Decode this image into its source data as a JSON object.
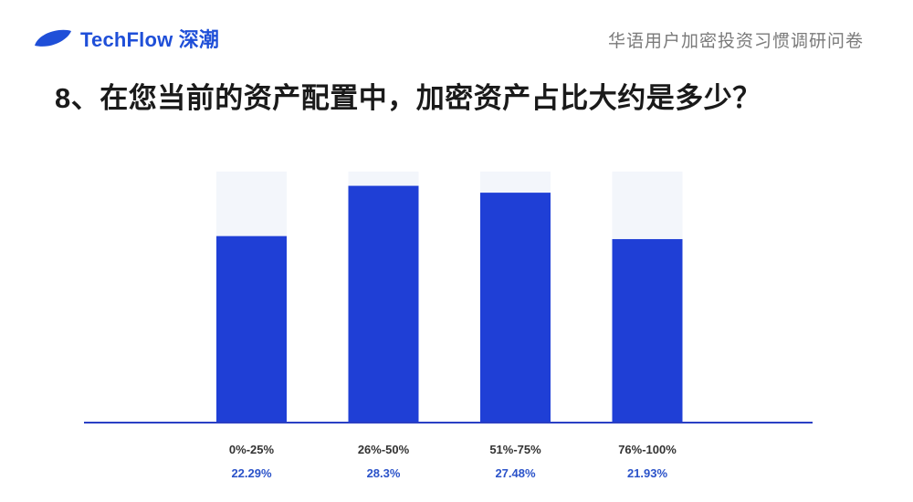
{
  "header": {
    "brand": "TechFlow 深潮",
    "survey_title": "华语用户加密投资习惯调研问卷"
  },
  "question": {
    "number": "8、",
    "text": "在您当前的资产配置中，加密资产占比大约是多少？"
  },
  "colors": {
    "brand": "#1f4fd8",
    "bar": "#1f3fd6",
    "bar_track": "#f3f6fb",
    "axis": "#2a3fc4",
    "value_text": "#2a52c9"
  },
  "chart_data": {
    "type": "bar",
    "categories": [
      "0%-25%",
      "26%-50%",
      "51%-75%",
      "76%-100%"
    ],
    "values": [
      22.29,
      28.3,
      27.48,
      21.93
    ],
    "value_labels": [
      "22.29%",
      "28.3%",
      "27.48%",
      "21.93%"
    ],
    "title": "",
    "xlabel": "",
    "ylabel": "",
    "ylim": [
      0,
      100
    ],
    "grid": false,
    "legend": "none"
  }
}
